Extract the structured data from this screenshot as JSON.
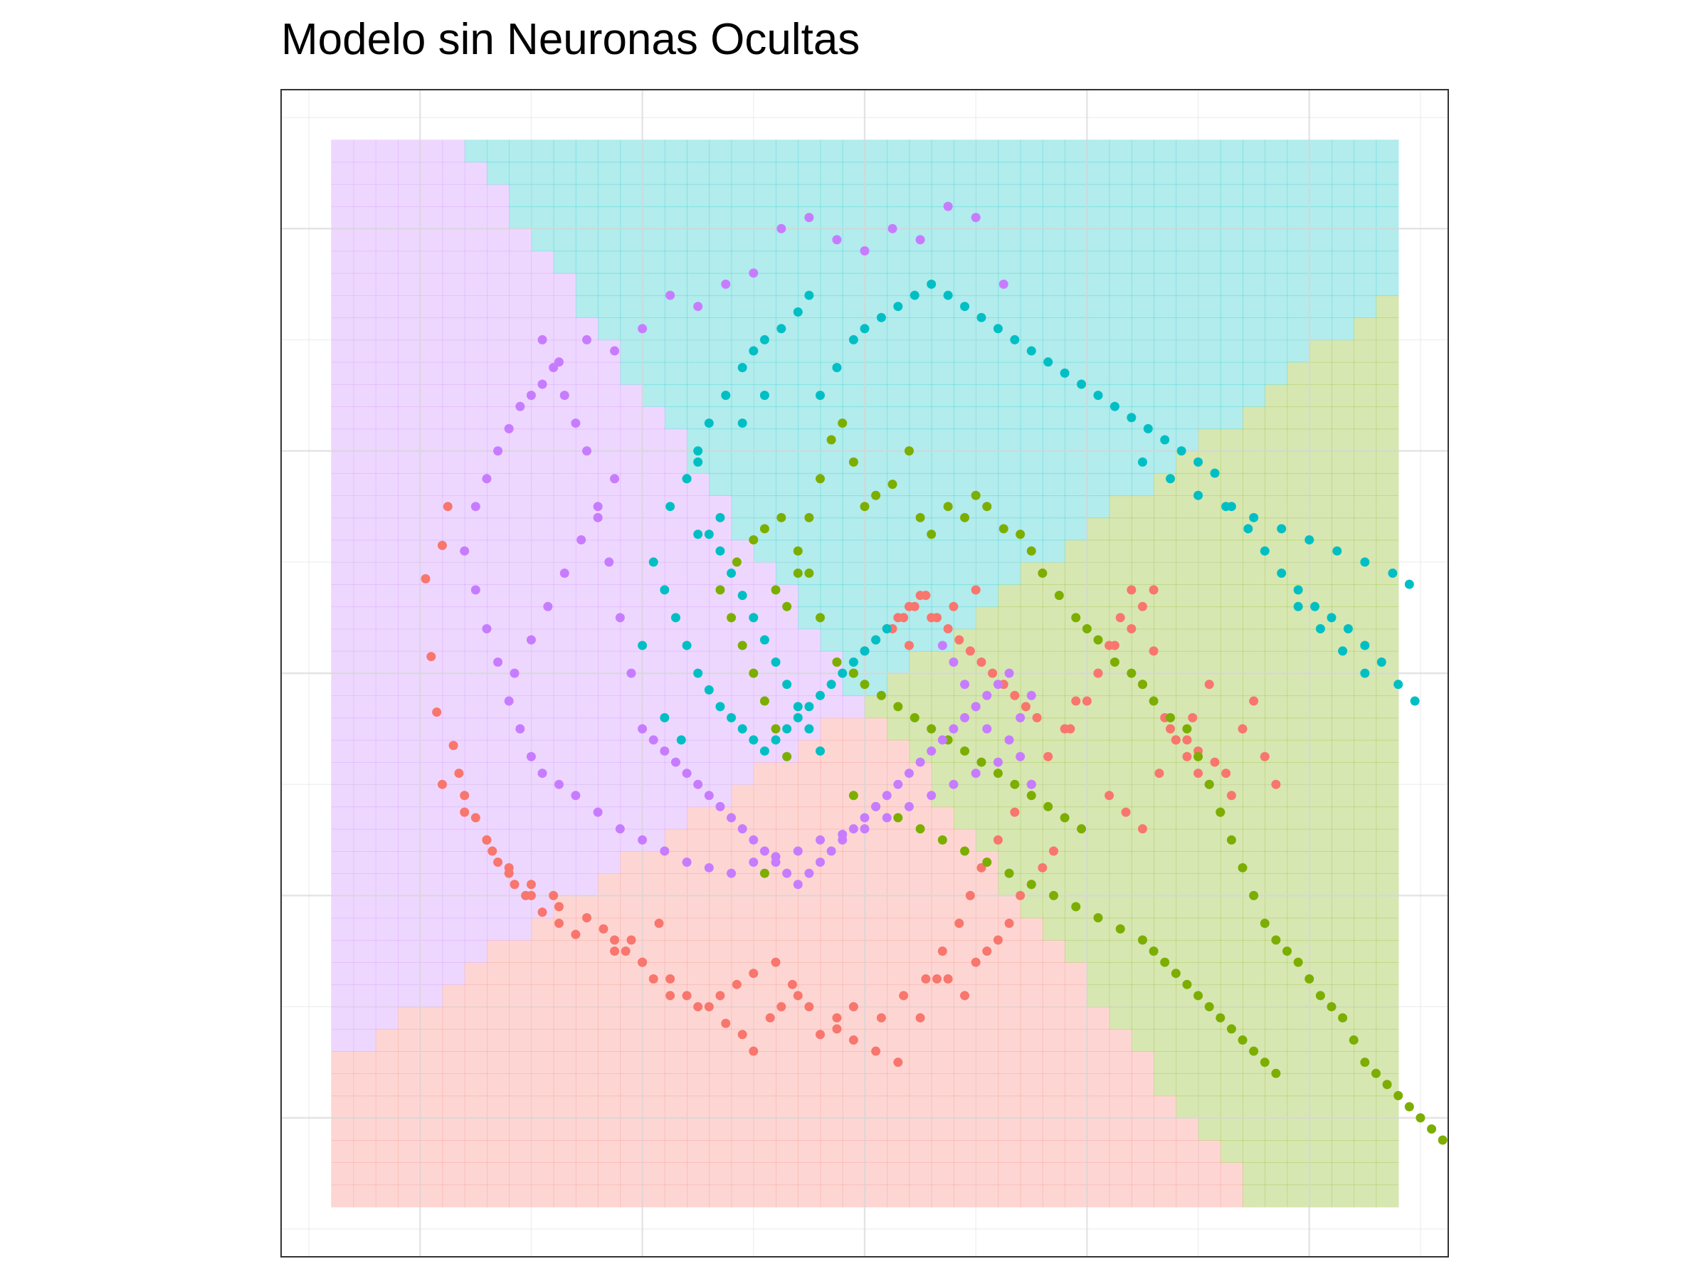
{
  "chart_data": {
    "type": "scatter",
    "title": "Modelo sin Neuronas Ocultas",
    "xlabel": "",
    "ylabel": "",
    "xlim": [
      -1.05,
      1.05
    ],
    "ylim": [
      -1.05,
      1.05
    ],
    "grid": true,
    "legend": "none",
    "region_colors": [
      "#F8766D",
      "#7CAE00",
      "#00BFC4",
      "#C77CFF"
    ],
    "region_opacity": 0.3,
    "point_colors": [
      "#F8766D",
      "#7CAE00",
      "#00BFC4",
      "#C77CFF"
    ],
    "boundaries": [
      {
        "from": [
          0.0,
          -0.05
        ],
        "to": [
          -1.0,
          -0.73
        ],
        "note": "rosa / morado"
      },
      {
        "from": [
          0.0,
          -0.05
        ],
        "to": [
          0.74,
          -1.0
        ],
        "note": "rosa / verde"
      },
      {
        "from": [
          0.0,
          -0.05
        ],
        "to": [
          1.0,
          0.72
        ],
        "note": "verde / turquesa"
      },
      {
        "from": [
          0.0,
          -0.05
        ],
        "to": [
          -0.75,
          1.0
        ],
        "note": "turquesa / morado"
      }
    ],
    "series": [
      {
        "class": 1,
        "color": "#F8766D",
        "x": [
          -0.76,
          -0.75,
          -0.79,
          -0.78,
          -0.77,
          -0.74,
          -0.73,
          -0.72,
          -0.7,
          -0.68,
          -0.67,
          -0.66,
          -0.64,
          -0.63,
          -0.61,
          -0.58,
          -0.55,
          -0.52,
          -0.45,
          -0.42,
          -0.4,
          -0.37,
          -0.35,
          -0.32,
          -0.28,
          -0.25,
          -0.22,
          -0.2,
          -0.17,
          -0.15,
          -0.12,
          -0.08,
          -0.05,
          -0.02,
          0.02,
          0.06,
          0.1,
          0.13,
          0.15,
          0.18,
          0.2,
          0.22,
          0.24,
          0.26,
          0.28,
          0.3,
          0.32,
          0.34,
          0.37,
          0.4,
          0.42,
          0.44,
          0.46,
          0.48,
          0.5,
          0.52,
          0.54,
          0.56,
          0.58,
          0.6,
          0.62,
          0.64,
          0.66,
          0.68,
          0.7,
          0.72,
          0.74,
          -0.6,
          -0.55,
          -0.5,
          -0.47,
          -0.45,
          -0.43,
          -0.4,
          -0.38,
          -0.35,
          -0.3,
          -0.26,
          -0.23,
          -0.2,
          -0.16,
          -0.13,
          -0.1,
          -0.05,
          -0.02,
          0.03,
          0.07,
          0.11,
          0.14,
          0.17,
          0.19,
          0.21,
          0.24,
          0.27,
          0.3,
          0.33,
          0.36,
          0.38,
          0.42,
          0.45,
          0.48,
          0.5,
          0.52,
          0.55,
          0.58,
          0.6,
          0.63,
          0.65,
          0.05,
          0.07,
          0.09,
          0.11,
          0.13,
          0.15,
          0.17,
          0.19,
          0.21,
          0.23,
          0.25,
          0.27,
          0.29,
          0.31,
          0.08,
          0.12,
          0.16,
          0.2,
          -0.05,
          -0.02,
          0.0,
          0.02,
          0.04,
          0.06,
          0.08,
          0.1,
          -0.76,
          -0.72,
          -0.68,
          -0.64,
          -0.6,
          -0.56,
          0.44,
          0.47,
          0.5,
          0.53,
          0.56,
          0.59,
          0.62
        ],
        "y": [
          0.23,
          0.3,
          0.17,
          0.03,
          -0.07,
          -0.13,
          -0.18,
          -0.22,
          -0.26,
          -0.3,
          -0.32,
          -0.34,
          -0.36,
          -0.38,
          -0.4,
          -0.43,
          -0.45,
          -0.47,
          -0.5,
          -0.48,
          -0.52,
          -0.45,
          -0.55,
          -0.58,
          -0.6,
          -0.63,
          -0.65,
          -0.68,
          -0.62,
          -0.6,
          -0.58,
          -0.65,
          -0.62,
          -0.6,
          -0.68,
          -0.7,
          -0.62,
          -0.55,
          -0.55,
          -0.58,
          -0.52,
          -0.5,
          -0.48,
          -0.45,
          -0.4,
          -0.38,
          -0.35,
          -0.32,
          -0.1,
          -0.05,
          0.0,
          0.05,
          0.1,
          0.15,
          -0.02,
          0.04,
          -0.08,
          -0.12,
          -0.15,
          -0.18,
          -0.2,
          -0.25,
          -0.22,
          -0.1,
          -0.05,
          -0.15,
          -0.2,
          -0.4,
          -0.42,
          -0.44,
          -0.46,
          -0.48,
          -0.5,
          -0.52,
          -0.55,
          -0.58,
          -0.6,
          -0.58,
          -0.56,
          -0.54,
          -0.52,
          -0.56,
          -0.6,
          -0.64,
          -0.66,
          -0.62,
          -0.58,
          -0.55,
          -0.5,
          -0.45,
          -0.4,
          -0.35,
          -0.3,
          -0.25,
          -0.2,
          -0.15,
          -0.1,
          -0.05,
          0.0,
          0.05,
          0.08,
          0.12,
          0.15,
          -0.1,
          -0.12,
          -0.14,
          -0.16,
          -0.18,
          0.08,
          0.1,
          0.12,
          0.14,
          0.1,
          0.08,
          0.06,
          0.04,
          0.02,
          0.0,
          -0.02,
          -0.04,
          -0.06,
          -0.08,
          0.05,
          0.1,
          0.12,
          0.15,
          0.02,
          0.0,
          0.04,
          0.06,
          0.08,
          0.1,
          0.12,
          0.14,
          -0.2,
          -0.25,
          -0.3,
          -0.35,
          -0.38,
          -0.4,
          -0.22,
          -0.25,
          -0.28,
          -0.18,
          -0.12,
          -0.08,
          -0.02
        ]
      },
      {
        "class": 2,
        "color": "#7CAE00",
        "x": [
          -0.26,
          -0.24,
          -0.22,
          -0.2,
          -0.18,
          -0.16,
          -0.14,
          -0.12,
          -0.1,
          -0.08,
          -0.06,
          -0.04,
          -0.02,
          0.0,
          0.02,
          0.05,
          0.08,
          0.1,
          0.12,
          0.15,
          0.18,
          0.2,
          0.22,
          0.25,
          0.28,
          0.3,
          0.32,
          0.35,
          0.38,
          0.4,
          0.42,
          0.45,
          0.48,
          0.5,
          0.52,
          0.55,
          0.58,
          0.6,
          0.62,
          0.64,
          0.66,
          0.68,
          0.7,
          0.72,
          0.74,
          0.76,
          0.78,
          0.8,
          0.82,
          0.84,
          0.86,
          0.88,
          0.9,
          0.92,
          0.94,
          0.96,
          0.98,
          1.0,
          1.02,
          1.04,
          -0.05,
          -0.02,
          0.0,
          0.03,
          0.06,
          0.09,
          0.12,
          0.15,
          0.18,
          0.21,
          0.24,
          0.27,
          0.3,
          0.33,
          0.36,
          0.39,
          -0.23,
          -0.2,
          -0.18,
          -0.15,
          -0.12,
          -0.1,
          -0.08,
          -0.16,
          -0.14,
          0.62,
          0.64,
          0.66,
          0.68,
          0.7,
          0.72,
          0.74,
          0.6,
          0.58,
          0.56,
          0.54,
          0.52,
          0.5,
          0.46,
          0.42,
          0.38,
          0.34,
          0.3,
          0.26,
          0.22,
          0.18,
          0.14,
          0.1,
          0.06,
          0.02,
          -0.02,
          -0.18
        ],
        "y": [
          0.15,
          0.1,
          0.05,
          0.0,
          -0.05,
          -0.1,
          -0.15,
          0.18,
          0.28,
          0.35,
          0.42,
          0.45,
          0.38,
          0.3,
          0.32,
          0.34,
          0.4,
          0.28,
          0.25,
          0.3,
          0.28,
          0.32,
          0.3,
          0.26,
          0.25,
          0.22,
          0.18,
          0.14,
          0.1,
          0.08,
          0.06,
          0.02,
          0.0,
          -0.02,
          -0.05,
          -0.08,
          -0.1,
          -0.15,
          -0.2,
          -0.25,
          -0.3,
          -0.35,
          -0.4,
          -0.45,
          -0.48,
          -0.5,
          -0.52,
          -0.55,
          -0.58,
          -0.6,
          -0.62,
          -0.66,
          -0.7,
          -0.72,
          -0.74,
          -0.76,
          -0.78,
          -0.8,
          -0.82,
          -0.84,
          0.02,
          0.0,
          -0.02,
          -0.04,
          -0.06,
          -0.08,
          -0.1,
          -0.12,
          -0.14,
          -0.16,
          -0.18,
          -0.2,
          -0.22,
          -0.24,
          -0.26,
          -0.28,
          0.2,
          0.24,
          0.26,
          0.28,
          0.22,
          0.18,
          0.1,
          0.15,
          0.12,
          -0.6,
          -0.62,
          -0.64,
          -0.66,
          -0.68,
          -0.7,
          -0.72,
          -0.58,
          -0.56,
          -0.54,
          -0.52,
          -0.5,
          -0.48,
          -0.46,
          -0.44,
          -0.42,
          -0.4,
          -0.38,
          -0.36,
          -0.34,
          -0.32,
          -0.3,
          -0.28,
          -0.26,
          -0.24,
          -0.22,
          -0.36
        ]
      },
      {
        "class": 3,
        "color": "#00BFC4",
        "x": [
          -0.35,
          -0.32,
          -0.3,
          -0.28,
          -0.25,
          -0.22,
          -0.2,
          -0.18,
          -0.15,
          -0.12,
          -0.1,
          -0.08,
          -0.05,
          -0.02,
          0.0,
          0.03,
          0.06,
          0.09,
          0.12,
          0.15,
          0.18,
          0.21,
          0.24,
          0.27,
          0.3,
          0.33,
          0.36,
          0.39,
          0.42,
          0.45,
          0.48,
          0.51,
          0.54,
          0.57,
          0.6,
          0.63,
          0.66,
          0.69,
          0.72,
          0.75,
          0.78,
          0.81,
          0.84,
          0.87,
          0.9,
          0.93,
          0.96,
          0.99,
          -0.38,
          -0.36,
          -0.34,
          -0.32,
          -0.3,
          -0.28,
          -0.26,
          -0.24,
          -0.22,
          -0.2,
          -0.18,
          -0.16,
          -0.14,
          -0.12,
          -0.1,
          -0.08,
          -0.06,
          -0.04,
          -0.02,
          0.0,
          0.02,
          0.04,
          -0.32,
          -0.3,
          -0.28,
          -0.26,
          -0.24,
          -0.22,
          -0.2,
          -0.18,
          -0.16,
          -0.14,
          -0.12,
          -0.1,
          -0.08,
          0.5,
          0.55,
          0.6,
          0.65,
          0.7,
          0.75,
          0.8,
          0.85,
          0.9,
          0.95,
          0.98,
          0.78,
          0.82,
          0.86,
          0.9,
          -0.4,
          -0.36,
          -0.33,
          -0.3,
          -0.26,
          -0.22,
          -0.18
        ],
        "y": [
          0.3,
          0.35,
          0.4,
          0.45,
          0.5,
          0.55,
          0.58,
          0.6,
          0.62,
          0.65,
          0.68,
          0.5,
          0.55,
          0.6,
          0.62,
          0.64,
          0.66,
          0.68,
          0.7,
          0.68,
          0.66,
          0.64,
          0.62,
          0.6,
          0.58,
          0.56,
          0.54,
          0.52,
          0.5,
          0.48,
          0.46,
          0.44,
          0.42,
          0.4,
          0.38,
          0.36,
          0.3,
          0.26,
          0.22,
          0.18,
          0.15,
          0.12,
          0.1,
          0.08,
          0.05,
          0.02,
          -0.02,
          -0.05,
          0.2,
          0.15,
          0.1,
          0.05,
          0.0,
          -0.03,
          -0.06,
          -0.08,
          -0.1,
          -0.12,
          -0.14,
          -0.12,
          -0.1,
          -0.08,
          -0.06,
          -0.04,
          -0.02,
          0.0,
          0.02,
          0.04,
          0.06,
          0.08,
          0.35,
          0.38,
          0.25,
          0.22,
          0.18,
          0.14,
          0.1,
          0.06,
          0.02,
          -0.02,
          -0.06,
          -0.1,
          -0.14,
          0.38,
          0.35,
          0.32,
          0.3,
          0.28,
          0.26,
          0.24,
          0.22,
          0.2,
          0.18,
          0.16,
          0.12,
          0.08,
          0.04,
          0.0,
          0.05,
          -0.08,
          -0.12,
          0.25,
          0.28,
          0.45,
          0.5
        ]
      },
      {
        "class": 4,
        "color": "#C77CFF",
        "x": [
          -0.15,
          -0.1,
          -0.05,
          0.0,
          0.05,
          0.1,
          0.15,
          0.2,
          0.25,
          -0.2,
          -0.25,
          -0.3,
          -0.35,
          -0.4,
          -0.45,
          -0.5,
          -0.55,
          -0.58,
          -0.6,
          -0.62,
          -0.64,
          -0.66,
          -0.68,
          -0.7,
          -0.72,
          -0.7,
          -0.68,
          -0.66,
          -0.64,
          -0.62,
          -0.6,
          -0.58,
          -0.55,
          -0.52,
          -0.48,
          -0.44,
          -0.4,
          -0.36,
          -0.32,
          -0.28,
          -0.24,
          -0.2,
          -0.16,
          -0.12,
          -0.08,
          -0.04,
          0.0,
          0.04,
          0.08,
          0.12,
          0.16,
          0.2,
          0.24,
          0.26,
          0.28,
          0.3,
          0.26,
          0.24,
          0.22,
          0.2,
          0.18,
          0.16,
          0.14,
          0.12,
          0.1,
          0.08,
          0.06,
          0.04,
          0.02,
          0.0,
          -0.02,
          -0.04,
          -0.06,
          -0.08,
          -0.1,
          -0.12,
          -0.14,
          -0.16,
          -0.18,
          -0.2,
          -0.22,
          -0.24,
          -0.26,
          -0.28,
          -0.3,
          -0.32,
          -0.34,
          -0.36,
          -0.38,
          -0.4,
          -0.42,
          -0.44,
          -0.46,
          -0.48,
          -0.5,
          -0.52,
          -0.54,
          -0.56,
          -0.58,
          0.28,
          0.3,
          0.14,
          0.16,
          0.18,
          0.2,
          0.22,
          -0.45,
          -0.48,
          -0.51,
          -0.54,
          -0.57,
          -0.6,
          -0.63
        ],
        "y": [
          0.8,
          0.82,
          0.78,
          0.76,
          0.8,
          0.78,
          0.84,
          0.82,
          0.7,
          0.72,
          0.7,
          0.66,
          0.68,
          0.62,
          0.58,
          0.6,
          0.56,
          0.52,
          0.5,
          0.48,
          0.44,
          0.4,
          0.35,
          0.3,
          0.22,
          0.15,
          0.08,
          0.02,
          -0.05,
          -0.1,
          -0.15,
          -0.18,
          -0.2,
          -0.22,
          -0.25,
          -0.28,
          -0.3,
          -0.32,
          -0.34,
          -0.35,
          -0.36,
          -0.34,
          -0.33,
          -0.32,
          -0.3,
          -0.29,
          -0.28,
          -0.26,
          -0.24,
          -0.22,
          -0.2,
          -0.18,
          -0.16,
          -0.12,
          -0.08,
          -0.04,
          0.0,
          -0.02,
          -0.04,
          -0.06,
          -0.08,
          -0.1,
          -0.12,
          -0.14,
          -0.16,
          -0.18,
          -0.2,
          -0.22,
          -0.24,
          -0.26,
          -0.28,
          -0.3,
          -0.32,
          -0.34,
          -0.36,
          -0.38,
          -0.36,
          -0.34,
          -0.32,
          -0.3,
          -0.28,
          -0.26,
          -0.24,
          -0.22,
          -0.2,
          -0.18,
          -0.16,
          -0.14,
          -0.12,
          -0.1,
          0.0,
          0.1,
          0.2,
          0.3,
          0.4,
          0.45,
          0.5,
          0.55,
          0.6,
          -0.15,
          -0.2,
          0.05,
          0.02,
          -0.02,
          -0.06,
          -0.1,
          0.35,
          0.28,
          0.24,
          0.18,
          0.12,
          0.06,
          0.0
        ]
      }
    ]
  }
}
